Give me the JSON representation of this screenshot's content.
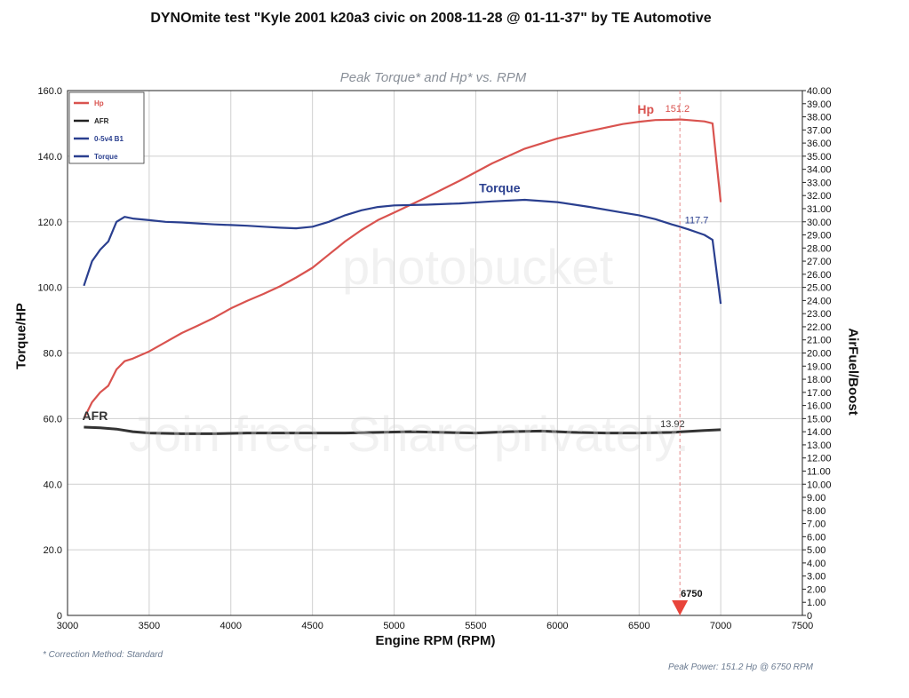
{
  "title": "DYNOmite test \"Kyle 2001 k20a3 civic  on 2008-11-28 @ 01-11-37\" by TE Automotive",
  "watermarks": {
    "top": "photobucket",
    "middle": "Join free. Share privately."
  },
  "footnotes": {
    "correction": "* Correction Method: Standard",
    "peak_power": "Peak Power: 151.2 Hp @ 6750 RPM"
  },
  "chart_data": {
    "type": "line",
    "title": "Peak Torque* and Hp* vs. RPM",
    "xlabel": "Engine RPM (RPM)",
    "ylabel": "Torque/HP",
    "y2label": "AirFuel/Boost",
    "xlim": [
      3000,
      7500
    ],
    "ylim": [
      0,
      160
    ],
    "y2lim": [
      0,
      40
    ],
    "grid": true,
    "legend_placement": "top-left",
    "x_ticks": [
      "3000",
      "3500",
      "4000",
      "4500",
      "5000",
      "5500",
      "6000",
      "6500",
      "7000",
      "7500"
    ],
    "y_ticks": [
      "0",
      "20.0",
      "40.0",
      "60.0",
      "80.0",
      "100.0",
      "120.0",
      "140.0",
      "160.0"
    ],
    "y2_ticks": [
      "0",
      "1.00",
      "2.00",
      "3.00",
      "4.00",
      "5.00",
      "6.00",
      "7.00",
      "8.00",
      "9.00",
      "10.00",
      "11.00",
      "12.00",
      "13.00",
      "14.00",
      "15.00",
      "16.00",
      "17.00",
      "18.00",
      "19.00",
      "20.00",
      "21.00",
      "22.00",
      "23.00",
      "24.00",
      "25.00",
      "26.00",
      "27.00",
      "28.00",
      "29.00",
      "30.00",
      "31.00",
      "32.00",
      "33.00",
      "34.00",
      "35.00",
      "36.00",
      "37.00",
      "38.00",
      "39.00",
      "40.00"
    ],
    "legend": [
      {
        "name": "Hp",
        "color": "#d9534f"
      },
      {
        "name": "AFR",
        "color": "#222222"
      },
      {
        "name": "0-5v4 B1",
        "color": "#2a3f8f"
      },
      {
        "name": "Torque",
        "color": "#2a3f8f"
      }
    ],
    "series": [
      {
        "name": "Hp",
        "axis": "left",
        "color": "#d9534f",
        "x": [
          3100,
          3150,
          3200,
          3250,
          3300,
          3350,
          3400,
          3500,
          3600,
          3700,
          3800,
          3900,
          4000,
          4100,
          4200,
          4300,
          4400,
          4500,
          4600,
          4700,
          4800,
          4900,
          5000,
          5200,
          5400,
          5600,
          5800,
          6000,
          6200,
          6400,
          6500,
          6600,
          6700,
          6750,
          6800,
          6900,
          6950,
          7000
        ],
        "values": [
          60.0,
          65.0,
          68.0,
          70.0,
          75.0,
          77.5,
          78.3,
          80.5,
          83.3,
          86.1,
          88.4,
          90.8,
          93.6,
          95.9,
          98.0,
          100.3,
          103.0,
          106.0,
          110.0,
          114.0,
          117.5,
          120.5,
          122.8,
          127.5,
          132.5,
          137.8,
          142.3,
          145.4,
          147.7,
          149.8,
          150.5,
          151.0,
          151.1,
          151.2,
          151.0,
          150.6,
          150.0,
          126.0
        ]
      },
      {
        "name": "Torque",
        "axis": "left",
        "color": "#2a3f8f",
        "x": [
          3100,
          3150,
          3200,
          3250,
          3300,
          3350,
          3400,
          3500,
          3600,
          3700,
          3800,
          3900,
          4000,
          4100,
          4200,
          4300,
          4400,
          4500,
          4600,
          4700,
          4800,
          4900,
          5000,
          5200,
          5400,
          5600,
          5800,
          6000,
          6200,
          6400,
          6500,
          6600,
          6700,
          6750,
          6800,
          6900,
          6950,
          7000
        ],
        "values": [
          100.5,
          108.0,
          111.5,
          114.0,
          120.0,
          121.5,
          121.0,
          120.5,
          120.0,
          119.8,
          119.5,
          119.2,
          119.0,
          118.8,
          118.5,
          118.2,
          118.0,
          118.5,
          120.0,
          122.0,
          123.5,
          124.5,
          125.0,
          125.2,
          125.6,
          126.2,
          126.7,
          126.0,
          124.5,
          122.8,
          122.0,
          120.8,
          119.2,
          118.5,
          117.7,
          116.0,
          114.5,
          95.0
        ]
      },
      {
        "name": "AFR",
        "axis": "right",
        "color": "#333333",
        "x": [
          3100,
          3200,
          3300,
          3400,
          3500,
          3700,
          3900,
          4100,
          4300,
          4500,
          4700,
          4900,
          5100,
          5300,
          5500,
          5700,
          5900,
          6100,
          6300,
          6500,
          6700,
          6900,
          7000
        ],
        "values": [
          14.35,
          14.3,
          14.2,
          14.0,
          13.9,
          13.85,
          13.85,
          13.9,
          13.9,
          13.9,
          13.9,
          13.95,
          14.0,
          13.95,
          13.9,
          14.0,
          14.05,
          13.95,
          13.9,
          13.9,
          13.95,
          14.1,
          14.15
        ]
      }
    ],
    "annotations": [
      {
        "text": "Hp",
        "x": 6490,
        "y": 153.0,
        "axis": "left",
        "color": "#d9534f"
      },
      {
        "text": "151.2",
        "x": 6660,
        "y": 153.5,
        "axis": "left",
        "color": "#d9534f"
      },
      {
        "text": "Torque",
        "x": 5520,
        "y": 129.0,
        "axis": "left",
        "color": "#2a3f8f"
      },
      {
        "text": "117.7",
        "x": 6780,
        "y": 119.5,
        "axis": "left",
        "color": "#2a3f8f"
      },
      {
        "text": "AFR",
        "x": 3090,
        "y": 14.9,
        "axis": "right",
        "color": "#333333"
      },
      {
        "text": "13.92",
        "x": 6630,
        "y": 14.35,
        "axis": "right",
        "color": "#333333"
      }
    ],
    "marker": {
      "text": "6750",
      "x": 6750
    }
  }
}
